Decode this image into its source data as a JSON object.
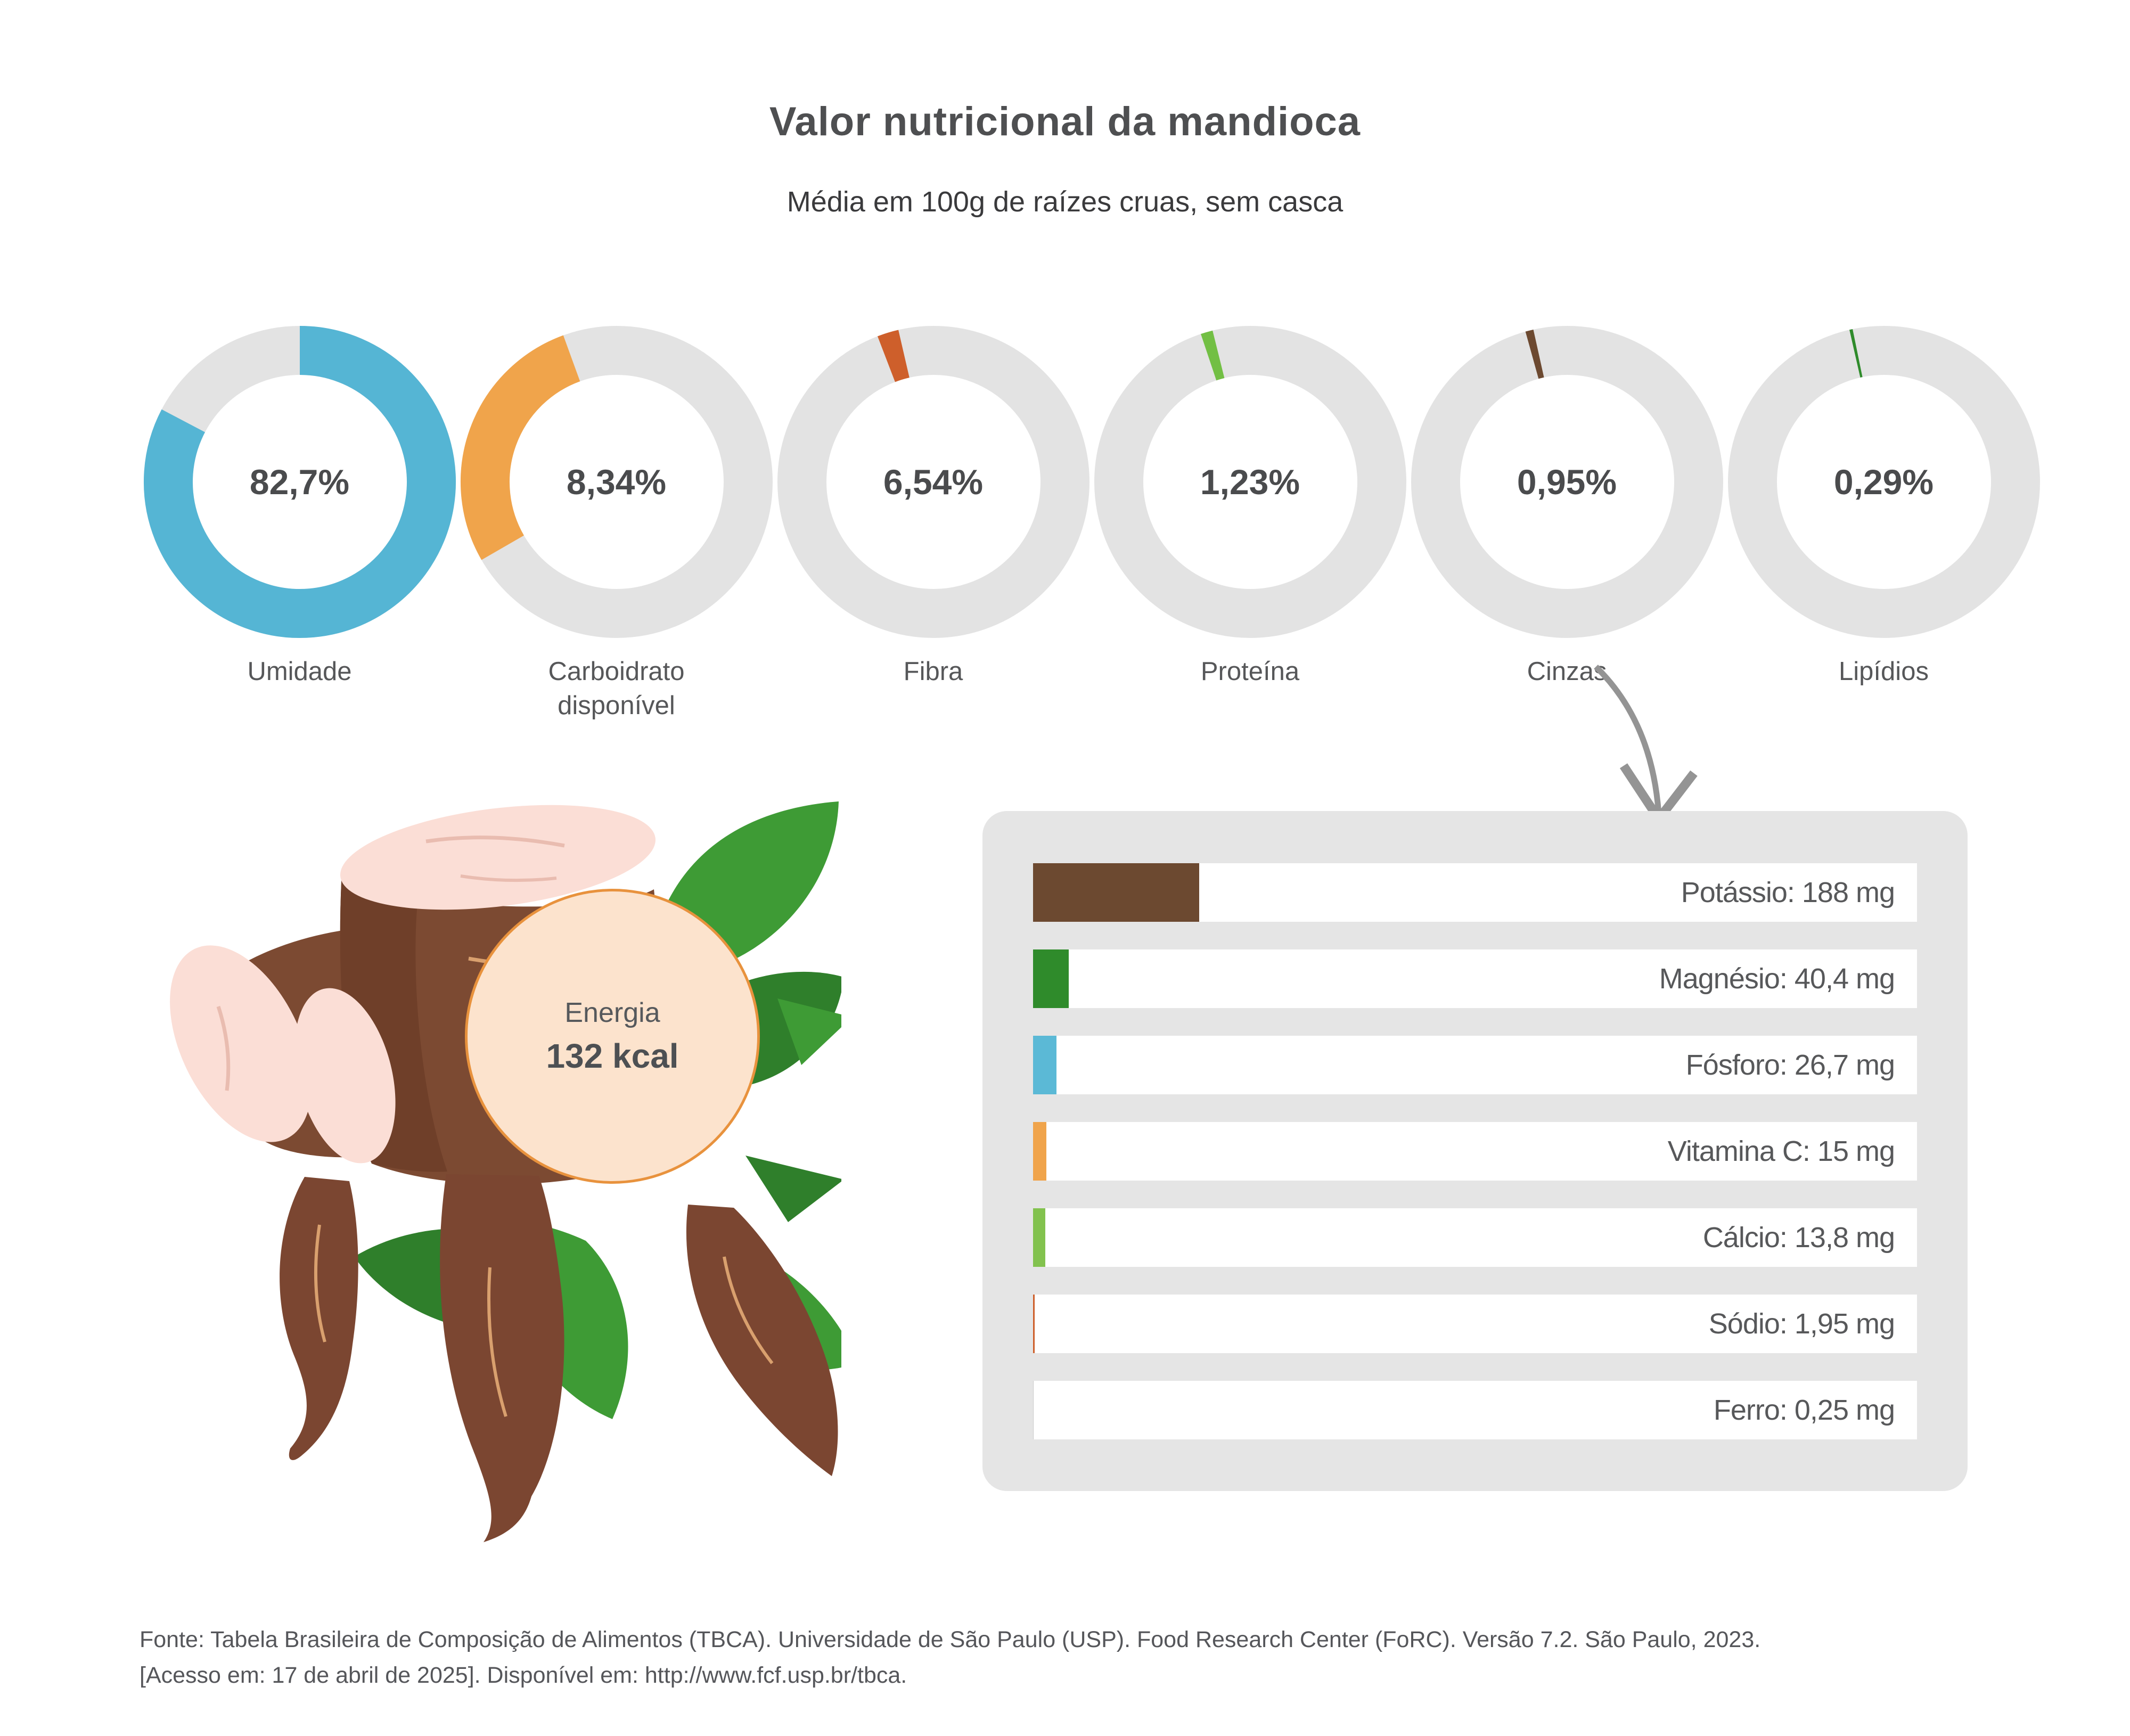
{
  "page": {
    "title": "Valor nutricional da mandioca",
    "subtitle": "Média em 100g de raízes cruas, sem casca",
    "background": "#FFFFFF",
    "ring_color": "#E3E3E3"
  },
  "donuts": [
    {
      "label": "Umidade",
      "value_text": "82,7%",
      "value_pct": 82.7,
      "color": "#55B5D4",
      "arc_start_deg": 0,
      "arc_end_deg": 297.7
    },
    {
      "label": "Carboidrato disponível",
      "value_text": "8,34%",
      "value_pct": 8.34,
      "color": "#F0A44B",
      "arc_start_deg": -120,
      "arc_end_deg": -20
    },
    {
      "label": "Fibra",
      "value_text": "6,54%",
      "value_pct": 6.54,
      "color": "#CE5F2B",
      "arc_start_deg": -21,
      "arc_end_deg": -13
    },
    {
      "label": "Proteína",
      "value_text": "1,23%",
      "value_pct": 1.23,
      "color": "#72BF44",
      "arc_start_deg": -18.5,
      "arc_end_deg": -14
    },
    {
      "label": "Cinzas",
      "value_text": "0,95%",
      "value_pct": 0.95,
      "color": "#6C4930",
      "arc_start_deg": -15.5,
      "arc_end_deg": -12.5
    },
    {
      "label": "Lipídios",
      "value_text": "0,29%",
      "value_pct": 0.29,
      "color": "#2F8B2B",
      "arc_start_deg": -12.8,
      "arc_end_deg": -11.6
    }
  ],
  "energy": {
    "label": "Energia",
    "value": "132 kcal",
    "fill": "#FCE3CD",
    "border": "#E8923D"
  },
  "panel": {
    "bg": "#E5E5E5",
    "scale_max_mg": 1000,
    "rows": [
      {
        "label": "Potássio: 188 mg",
        "value_mg": 188,
        "color": "#6C4930"
      },
      {
        "label": "Magnésio: 40,4 mg",
        "value_mg": 40.4,
        "color": "#2F8B2B"
      },
      {
        "label": "Fósforo: 26,7 mg",
        "value_mg": 26.7,
        "color": "#5BB9D6"
      },
      {
        "label": "Vitamina C: 15 mg",
        "value_mg": 15,
        "color": "#F0A44B"
      },
      {
        "label": "Cálcio: 13,8 mg",
        "value_mg": 13.8,
        "color": "#82C24E"
      },
      {
        "label": "Sódio: 1,95 mg",
        "value_mg": 1.95,
        "color": "#CE5F2B"
      },
      {
        "label": "Ferro: 0,25 mg",
        "value_mg": 0.25,
        "color": "#C9C9C9"
      }
    ]
  },
  "arrow": {
    "color": "#949494",
    "from_label": "Cinzas"
  },
  "footer": {
    "line1": "Fonte: Tabela Brasileira de Composição de Alimentos (TBCA). Universidade de São Paulo (USP). Food Research Center (FoRC). Versão 7.2. São Paulo, 2023.",
    "line2": "[Acesso em: 17 de abril de 2025]. Disponível em: http://www.fcf.usp.br/tbca."
  },
  "chart_data": [
    {
      "type": "pie",
      "title": "Valor nutricional da mandioca",
      "subtitle": "Média em 100g de raízes cruas, sem casca",
      "categories": [
        "Umidade",
        "Carboidrato disponível",
        "Fibra",
        "Proteína",
        "Cinzas",
        "Lipídios"
      ],
      "values": [
        82.7,
        8.34,
        6.54,
        1.23,
        0.95,
        0.29
      ],
      "unit": "%",
      "legend_position": "below-each-donut",
      "note": "six separate donut gauges, value printed in center of each"
    },
    {
      "type": "bar",
      "title": "Minerais e vitaminas (mg por 100g)",
      "categories": [
        "Potássio",
        "Magnésio",
        "Fósforo",
        "Vitamina C",
        "Cálcio",
        "Sódio",
        "Ferro"
      ],
      "values": [
        188,
        40.4,
        26.7,
        15,
        13.8,
        1.95,
        0.25
      ],
      "unit": "mg",
      "xlim": [
        0,
        1000
      ],
      "orientation": "horizontal",
      "grid": false,
      "note": "labels right-aligned inside white rows; energy callout: Energia 132 kcal"
    }
  ]
}
